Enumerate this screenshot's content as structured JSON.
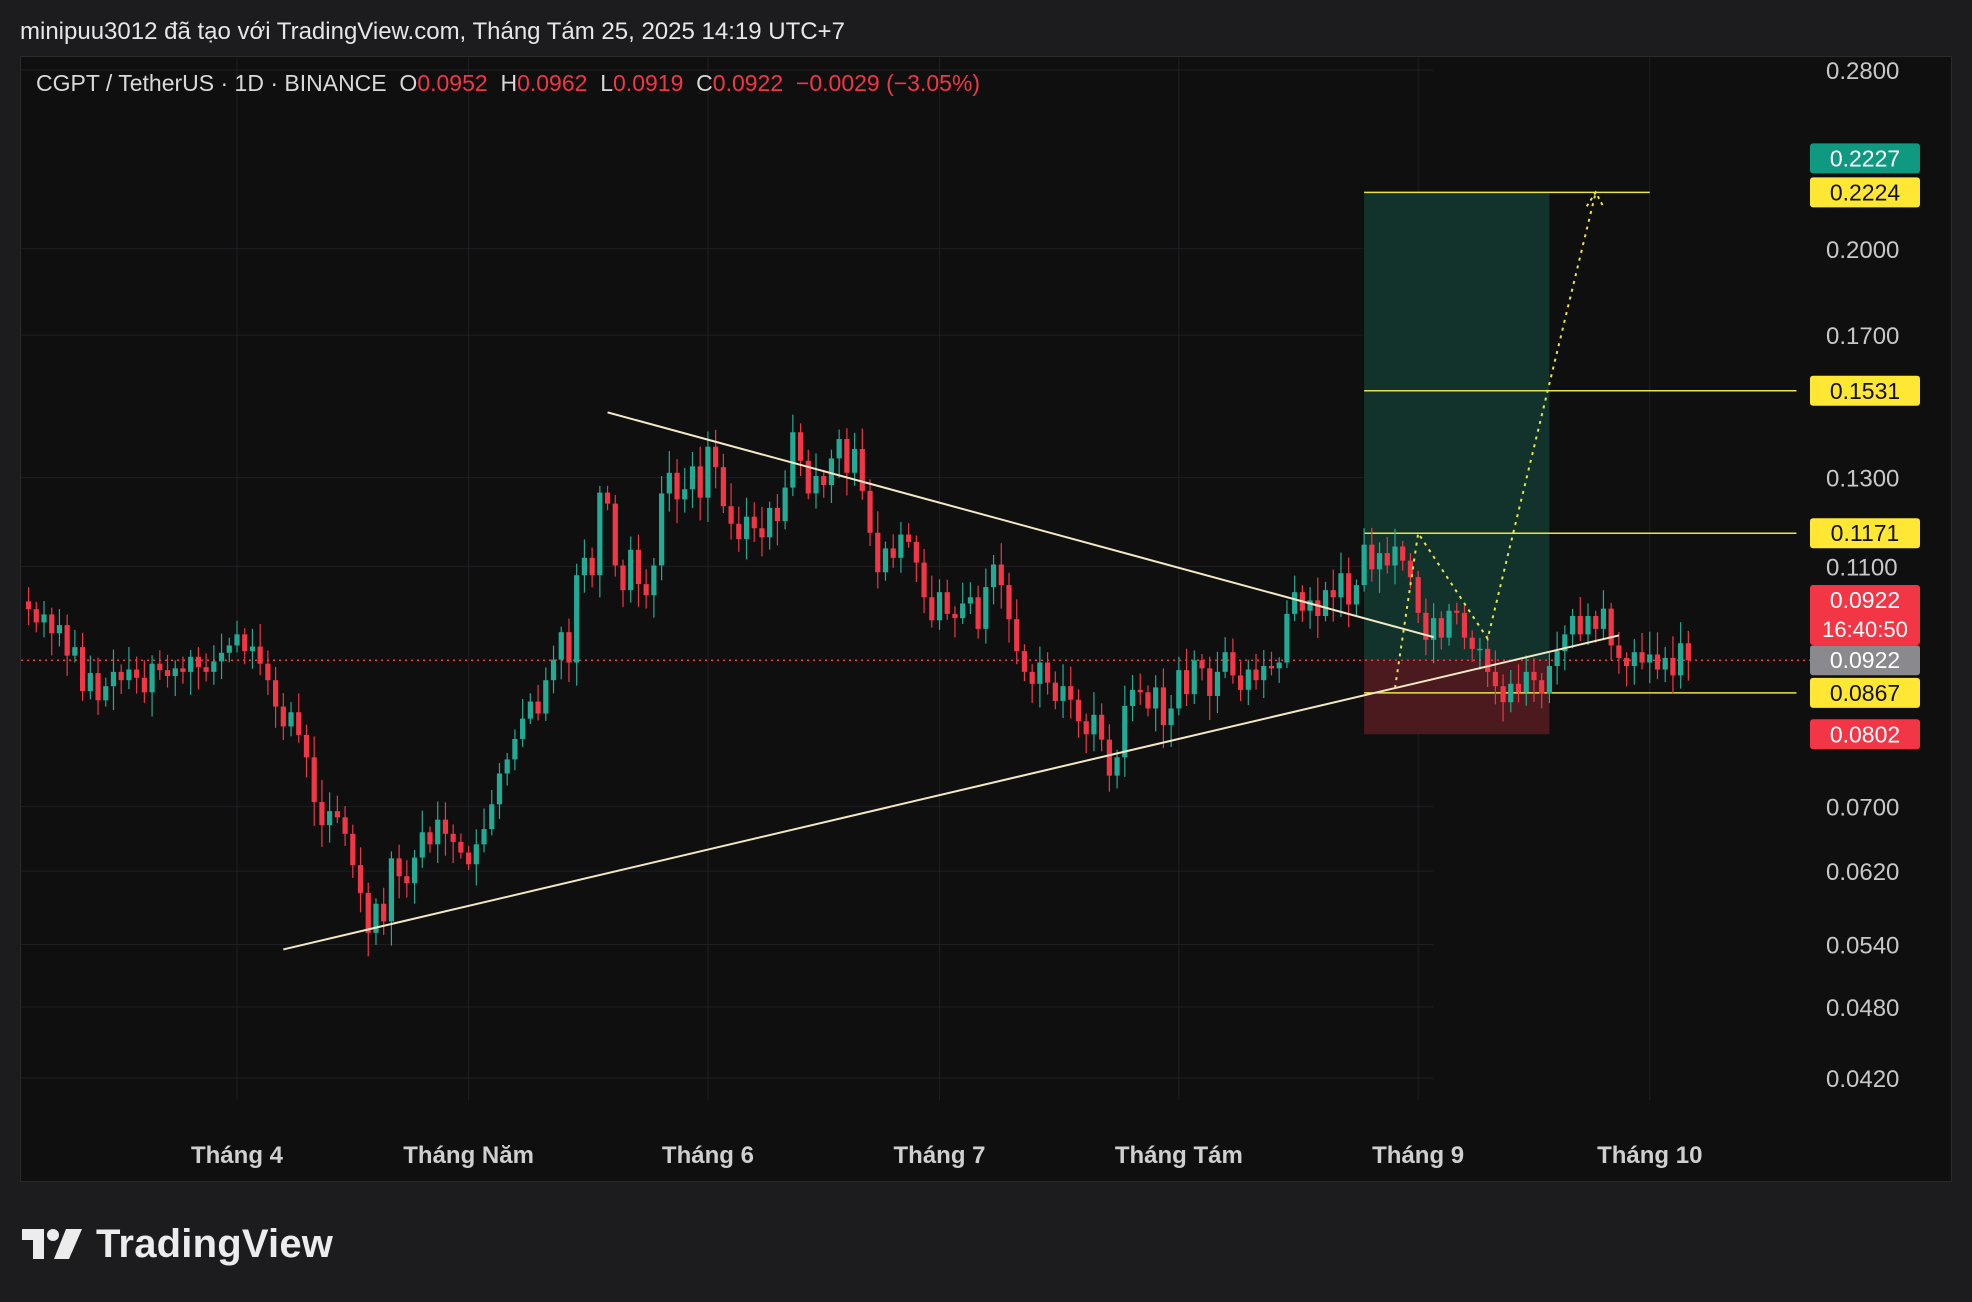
{
  "header": {
    "attribution": "minipuu3012 đã tạo với TradingView.com, Tháng Tám 25, 2025 14:19 UTC+7"
  },
  "legend": {
    "symbol": "CGPT / TetherUS · 1D · BINANCE",
    "open_label": "O",
    "open": "0.0952",
    "high_label": "H",
    "high": "0.0962",
    "low_label": "L",
    "low": "0.0919",
    "close_label": "C",
    "close": "0.0922",
    "change": "−0.0029 (−3.05%)"
  },
  "footer": {
    "brand": "TradingView"
  },
  "colors": {
    "up": "#22ab94",
    "down": "#f23645",
    "trendline": "#f2e8c4",
    "target_line": "#e9e44a",
    "profit_zone": "#12332b",
    "loss_zone": "#4a1a1e",
    "badge_green": "#0f9980",
    "badge_yellow": "#ffe733",
    "badge_red": "#f23645",
    "badge_gray": "#8a8a8e"
  },
  "chart_data": {
    "type": "candlestick",
    "scale": "log",
    "y_ticks": [
      {
        "value": 0.28,
        "label": "0.2800"
      },
      {
        "value": 0.2,
        "label": "0.2000"
      },
      {
        "value": 0.17,
        "label": "0.1700"
      },
      {
        "value": 0.13,
        "label": "0.1300"
      },
      {
        "value": 0.11,
        "label": "0.1100"
      },
      {
        "value": 0.07,
        "label": "0.0700"
      },
      {
        "value": 0.062,
        "label": "0.0620"
      },
      {
        "value": 0.054,
        "label": "0.0540"
      },
      {
        "value": 0.048,
        "label": "0.0480"
      },
      {
        "value": 0.042,
        "label": "0.0420"
      }
    ],
    "x_ticks": [
      {
        "date": "2025-04-01",
        "label": "Tháng 4"
      },
      {
        "date": "2025-05-01",
        "label": "Tháng Năm"
      },
      {
        "date": "2025-06-01",
        "label": "Tháng 6"
      },
      {
        "date": "2025-07-01",
        "label": "Tháng 7"
      },
      {
        "date": "2025-08-01",
        "label": "Tháng Tám"
      },
      {
        "date": "2025-09-01",
        "label": "Tháng 9"
      },
      {
        "date": "2025-10-01",
        "label": "Tháng 10"
      }
    ],
    "last_price": {
      "value": 0.0922,
      "label": "0.0922",
      "countdown": "16:40:50"
    },
    "price_badges": [
      {
        "value": 0.2227,
        "label": "0.2227",
        "style": "green"
      },
      {
        "value": 0.2224,
        "label": "0.2224",
        "style": "yellow"
      },
      {
        "value": 0.1531,
        "label": "0.1531",
        "style": "yellow"
      },
      {
        "value": 0.1171,
        "label": "0.1171",
        "style": "yellow"
      },
      {
        "value": 0.0922,
        "label": "0.0922",
        "style": "gray"
      },
      {
        "value": 0.0867,
        "label": "0.0867",
        "style": "yellow"
      },
      {
        "value": 0.0802,
        "label": "0.0802",
        "style": "red"
      }
    ],
    "horizontal_lines": [
      {
        "value": 0.2224,
        "from": "2025-08-25",
        "to": "2025-10-01"
      },
      {
        "value": 0.1531,
        "from": "2025-08-25",
        "to": "2025-10-20"
      },
      {
        "value": 0.1171,
        "from": "2025-08-25",
        "to": "2025-10-20"
      },
      {
        "value": 0.0867,
        "from": "2025-08-25",
        "to": "2025-10-20"
      }
    ],
    "long_position": {
      "from": "2025-08-25",
      "to": "2025-09-18",
      "entry": 0.0922,
      "target": 0.2224,
      "stop": 0.0802
    },
    "trendlines": [
      {
        "from": {
          "date": "2025-04-07",
          "price": 0.0535
        },
        "to": {
          "date": "2025-09-27",
          "price": 0.0966
        }
      },
      {
        "from": {
          "date": "2025-05-19",
          "price": 0.147
        },
        "to": {
          "date": "2025-09-03",
          "price": 0.0963
        }
      }
    ],
    "projection_path": [
      {
        "date": "2025-08-29",
        "price": 0.0875
      },
      {
        "date": "2025-09-01",
        "price": 0.1171
      },
      {
        "date": "2025-09-10",
        "price": 0.096
      },
      {
        "date": "2025-09-24",
        "price": 0.2224
      }
    ],
    "start_date": "2025-03-04",
    "closes": [
      0.103,
      0.1015,
      0.099,
      0.1005,
      0.097,
      0.0985,
      0.093,
      0.0945,
      0.087,
      0.09,
      0.0855,
      0.0878,
      0.0902,
      0.0888,
      0.0906,
      0.0892,
      0.0868,
      0.0916,
      0.0905,
      0.0895,
      0.0908,
      0.0902,
      0.0928,
      0.091,
      0.0902,
      0.092,
      0.0935,
      0.0948,
      0.0968,
      0.0938,
      0.0946,
      0.0916,
      0.0888,
      0.0845,
      0.0814,
      0.0836,
      0.0801,
      0.0768,
      0.0706,
      0.0676,
      0.0694,
      0.0686,
      0.0665,
      0.0627,
      0.0595,
      0.0552,
      0.0583,
      0.0564,
      0.0635,
      0.0614,
      0.0606,
      0.0636,
      0.0667,
      0.0652,
      0.0683,
      0.0665,
      0.0655,
      0.0642,
      0.0628,
      0.0652,
      0.0671,
      0.0703,
      0.0745,
      0.0765,
      0.0795,
      0.0826,
      0.0853,
      0.0834,
      0.0888,
      0.0923,
      0.0972,
      0.0918,
      0.1082,
      0.1118,
      0.1082,
      0.1264,
      0.1238,
      0.1102,
      0.1052,
      0.1135,
      0.1064,
      0.1042,
      0.1102,
      0.1262,
      0.1312,
      0.1248,
      0.1272,
      0.1328,
      0.1252,
      0.1378,
      0.1326,
      0.1232,
      0.1192,
      0.1158,
      0.1208,
      0.1182,
      0.1162,
      0.1228,
      0.1198,
      0.1276,
      0.1416,
      0.1342,
      0.1262,
      0.1304,
      0.1282,
      0.1348,
      0.1398,
      0.1312,
      0.1372,
      0.1268,
      0.1172,
      0.1088,
      0.1138,
      0.1118,
      0.1168,
      0.1152,
      0.1108,
      0.1038,
      0.0994,
      0.1048,
      0.1006,
      0.0998,
      0.1026,
      0.1038,
      0.0978,
      0.1058,
      0.1104,
      0.1062,
      0.0996,
      0.0938,
      0.0902,
      0.0882,
      0.0918,
      0.0884,
      0.0854,
      0.0878,
      0.0856,
      0.0822,
      0.0802,
      0.0832,
      0.0794,
      0.0742,
      0.0768,
      0.0846,
      0.0872,
      0.0868,
      0.0842,
      0.0876,
      0.0816,
      0.0842,
      0.0905,
      0.0865,
      0.0922,
      0.0908,
      0.0862,
      0.0902,
      0.0936,
      0.0896,
      0.0872,
      0.0906,
      0.0888,
      0.0912,
      0.0908,
      0.0918,
      0.1006,
      0.1048,
      0.1012,
      0.1032,
      0.1002,
      0.1052,
      0.1038,
      0.1086,
      0.1024,
      0.1062,
      0.1146,
      0.1094,
      0.1128,
      0.1102,
      0.1142,
      0.1112,
      0.1078,
      0.1008,
      0.0958,
      0.0998,
      0.0962,
      0.1012,
      0.1008,
      0.0962,
      0.0942,
      0.0942,
      0.0902,
      0.0878,
      0.0852,
      0.0882,
      0.0868,
      0.0902,
      0.0888,
      0.0866,
      0.0912,
      0.0938,
      0.0968,
      0.1002,
      0.0968,
      0.1002,
      0.0978,
      0.1016,
      0.0948,
      0.0926,
      0.0912,
      0.0936,
      0.0918,
      0.0932,
      0.0906,
      0.0926,
      0.0896,
      0.0952,
      0.0922
    ]
  }
}
